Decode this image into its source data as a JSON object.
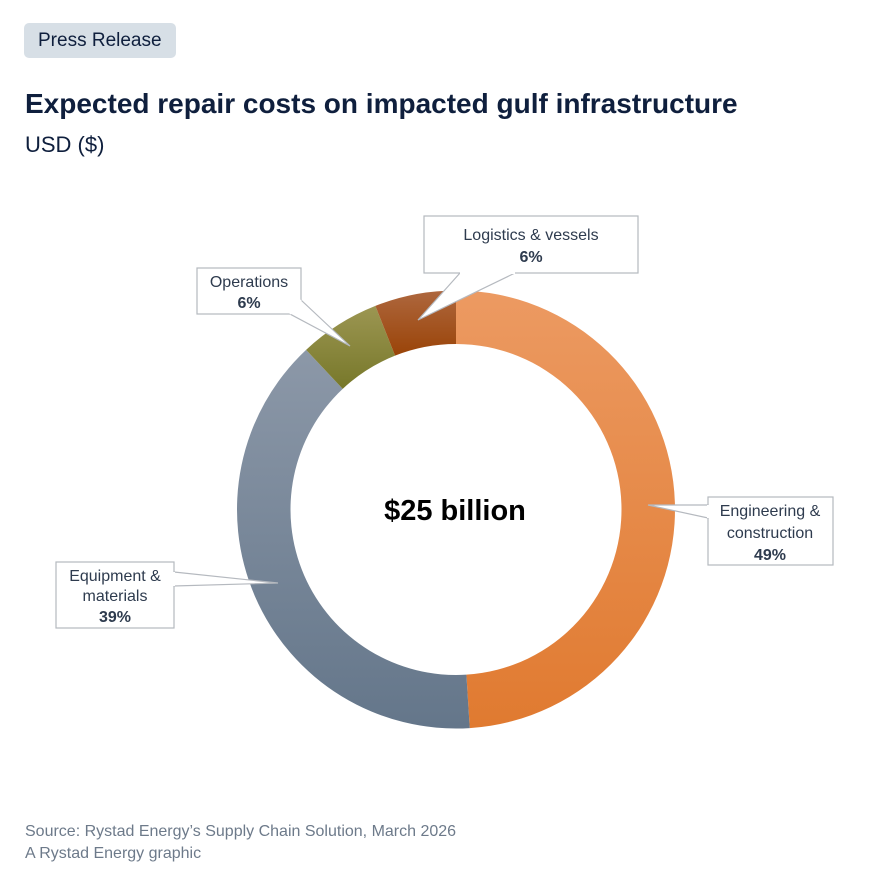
{
  "badge": "Press Release",
  "title": "Expected repair costs on impacted gulf infrastructure",
  "subtitle": "USD ($)",
  "footer": {
    "source": "Source: Rystad Energy’s Supply Chain Solution, March 2026",
    "credit": "A Rystad Energy graphic"
  },
  "chart_data": {
    "type": "pie",
    "variant": "donut",
    "center_label": "$25 billion",
    "slices": [
      {
        "label": "Engineering & construction",
        "value": 49,
        "value_label": "49%",
        "colors": [
          "#ec9a62",
          "#e07a30"
        ]
      },
      {
        "label": "Equipment & materials",
        "value": 39,
        "value_label": "39%",
        "colors": [
          "#8c98a8",
          "#64768a"
        ]
      },
      {
        "label": "Operations",
        "value": 6,
        "value_label": "6%",
        "colors": [
          "#9c9652",
          "#77782a"
        ]
      },
      {
        "label": "Logistics & vessels",
        "value": 6,
        "value_label": "6%",
        "colors": [
          "#ae673e",
          "#9a4408"
        ]
      }
    ],
    "callout_lines": [
      [
        "Engineering &",
        "construction"
      ],
      [
        "Equipment &",
        "materials"
      ],
      [
        "Operations"
      ],
      [
        "Logistics & vessels"
      ]
    ]
  }
}
